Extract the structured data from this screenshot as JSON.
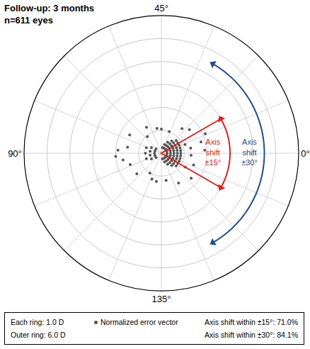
{
  "chart_data": {
    "type": "scatter_polar",
    "title": "Follow-up: 3 months",
    "subtitle": "n=611 eyes",
    "angular_ticks": [
      {
        "value": 0,
        "label": "0°"
      },
      {
        "value": 45,
        "label": "45°"
      },
      {
        "value": 90,
        "label": "90°"
      },
      {
        "value": 135,
        "label": "135°"
      }
    ],
    "rlim": [
      0,
      6
    ],
    "rticks": [
      1,
      2,
      3,
      4,
      5,
      6
    ],
    "grid": true,
    "series": [
      {
        "name": "Normalized error vector",
        "color": "#555555",
        "marker": "circle",
        "r": [
          0.25,
          0.25,
          0.25,
          0.25,
          0.25,
          0.25,
          0.25,
          0.25,
          0.25,
          0.4,
          0.4,
          0.4,
          0.4,
          0.4,
          0.4,
          0.4,
          0.4,
          0.4,
          0.4,
          0.4,
          0.55,
          0.55,
          0.55,
          0.55,
          0.55,
          0.55,
          0.55,
          0.55,
          0.55,
          0.55,
          0.55,
          0.7,
          0.7,
          0.7,
          0.7,
          0.7,
          0.7,
          0.7,
          0.7,
          0.7,
          0.7,
          0.7,
          0.85,
          0.85,
          0.85,
          0.85,
          0.85,
          0.85,
          0.85,
          0.85,
          0.85,
          0.85,
          0.85,
          0.3,
          0.3,
          0.3,
          0.3,
          0.3,
          0.5,
          0.5,
          0.5,
          0.5,
          0.7,
          0.7,
          0.7,
          1.1,
          1.3,
          1.5,
          1.2,
          1.6,
          1.4,
          1.8,
          1.0,
          1.2,
          1.5,
          1.9,
          1.1,
          1.3,
          1.6,
          1.9,
          1.7,
          1.4,
          1.2,
          1.0,
          1.5,
          2.0,
          1.3,
          1.7,
          2.1,
          1.05,
          1.25,
          0.95,
          1.45
        ],
        "theta": [
          0,
          10,
          20,
          30,
          40,
          170,
          160,
          150,
          140,
          0,
          7,
          14,
          21,
          28,
          35,
          173,
          166,
          159,
          152,
          145,
          0,
          6,
          12,
          18,
          24,
          30,
          174,
          168,
          162,
          156,
          150,
          0,
          5,
          10,
          15,
          20,
          25,
          175,
          170,
          165,
          160,
          155,
          0,
          4,
          8,
          12,
          16,
          20,
          176,
          172,
          168,
          164,
          160,
          80,
          90,
          100,
          70,
          110,
          75,
          85,
          95,
          105,
          80,
          90,
          100,
          10,
          5,
          170,
          165,
          20,
          25,
          8,
          35,
          140,
          150,
          2,
          50,
          60,
          75,
          88,
          95,
          110,
          125,
          120,
          85,
          92,
          178,
          160,
          12,
          45,
          130,
          65,
          100
        ]
      }
    ],
    "sectors": [
      {
        "label_lines": [
          "Axis",
          "shift",
          "±15°"
        ],
        "half_width": 15,
        "color": "#e02020"
      },
      {
        "label_lines": [
          "Axis",
          "shift",
          "±30°"
        ],
        "half_width": 30,
        "color": "#1f4e8c"
      }
    ],
    "notes": [
      "Each ring: 1.0 D",
      "Outer ring: 6.0 D"
    ],
    "summary": [
      "Axis shift within ±15°: 71.0%",
      "Axis shift within ±30°: 84.1%"
    ]
  }
}
